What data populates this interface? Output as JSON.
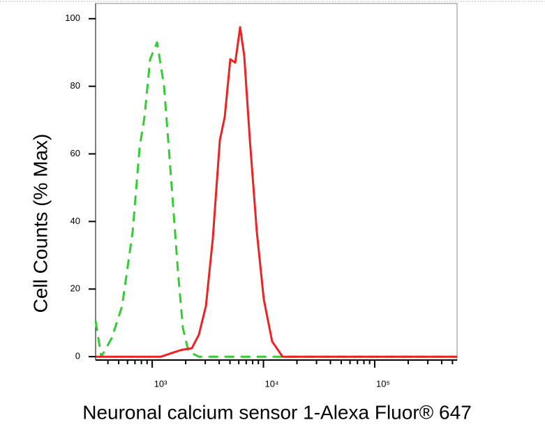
{
  "chart_data": {
    "type": "line",
    "xlabel": "Neuronal calcium sensor 1-Alexa Fluor® 647",
    "ylabel": "Cell Counts (% Max)",
    "xscale": "log",
    "xlim": [
      310,
      550000
    ],
    "ylim": [
      -1,
      104.5
    ],
    "xticks": [
      {
        "value": 1000,
        "label": "10³"
      },
      {
        "value": 10000,
        "label": "10⁴"
      },
      {
        "value": 100000,
        "label": "10⁵"
      }
    ],
    "xminorticks": [
      400,
      500,
      600,
      700,
      800,
      900,
      2000,
      3000,
      4000,
      5000,
      6000,
      7000,
      8000,
      9000,
      20000,
      30000,
      40000,
      50000,
      60000,
      70000,
      80000,
      90000,
      200000,
      300000,
      400000,
      500000
    ],
    "yticks": [
      0,
      20,
      40,
      60,
      80,
      100
    ],
    "series": [
      {
        "color": "#33cc33",
        "dashed": true,
        "x": [
          310,
          349,
          433,
          537,
          667,
          771,
          853,
          958,
          1106,
          1278,
          1477,
          1706,
          1888,
          2119,
          2630,
          13800,
          550000
        ],
        "values": [
          10.5,
          0,
          5.5,
          15,
          37,
          62,
          71,
          88,
          93,
          80,
          53,
          25,
          8.5,
          1.5,
          0,
          0,
          0
        ]
      },
      {
        "color": "#ee2222",
        "dashed": false,
        "x": [
          310,
          1200,
          1477,
          1833,
          2275,
          2630,
          3040,
          3510,
          4055,
          4488,
          5037,
          5574,
          6168,
          6724,
          7550,
          8716,
          10070,
          11970,
          14860,
          550000
        ],
        "values": [
          0,
          0,
          1,
          2,
          2.5,
          6.5,
          15,
          35,
          64,
          71,
          88,
          87,
          97.5,
          89,
          64,
          37,
          17,
          4.5,
          0,
          0
        ]
      }
    ]
  }
}
